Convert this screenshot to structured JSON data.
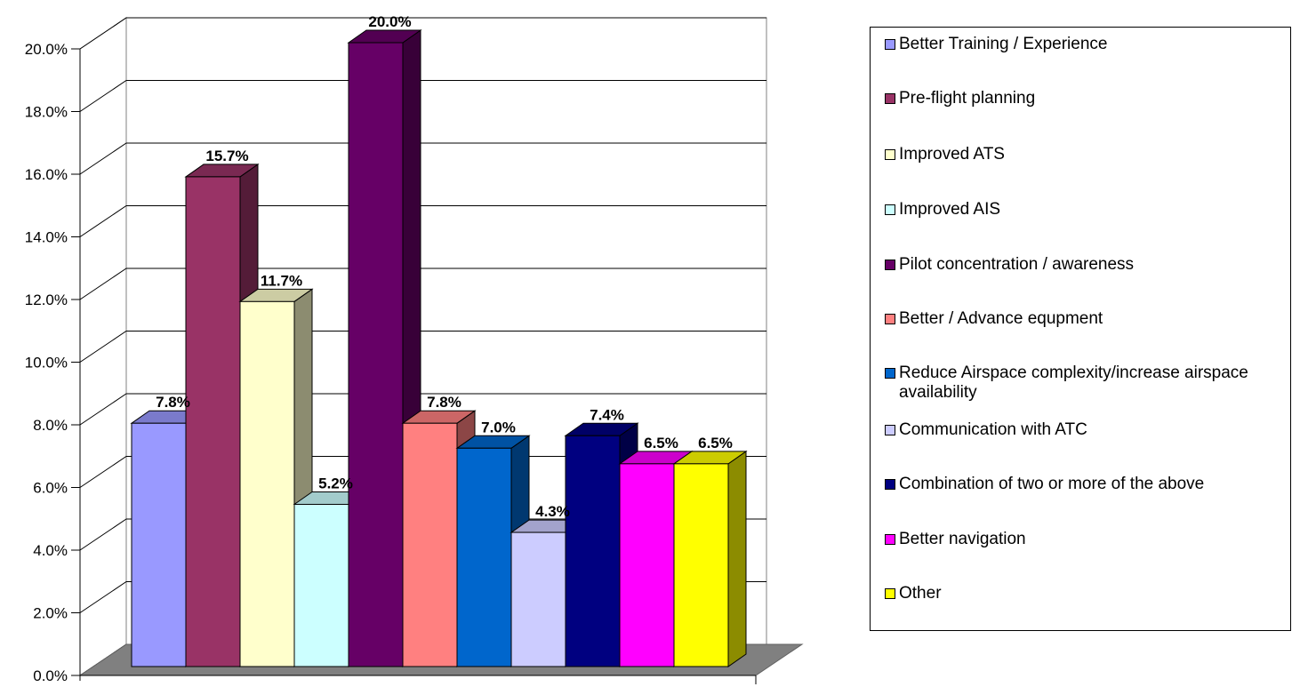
{
  "chart_data": {
    "type": "bar",
    "title": "",
    "xlabel": "",
    "ylabel": "",
    "ylim": [
      0,
      20
    ],
    "y_tick_labels": [
      "0.0%",
      "2.0%",
      "4.0%",
      "6.0%",
      "8.0%",
      "10.0%",
      "12.0%",
      "14.0%",
      "16.0%",
      "18.0%",
      "20.0%"
    ],
    "grid": true,
    "three_d": true,
    "legend_position": "right",
    "categories": [
      "Better Training / Experience",
      "Pre-flight planning",
      "Improved ATS",
      "Improved AIS",
      "Pilot concentration / awareness",
      "Better / Advance equpment",
      "Reduce Airspace complexity/increase airspace availability",
      "Communication with ATC",
      "Combination of two or more of the above",
      "Better navigation",
      "Other"
    ],
    "values": [
      7.8,
      15.7,
      11.7,
      5.2,
      20.0,
      7.8,
      7.0,
      4.3,
      7.4,
      6.5,
      6.5
    ],
    "data_labels": [
      "7.8%",
      "15.7%",
      "11.7%",
      "5.2%",
      "20.0%",
      "7.8%",
      "7.0%",
      "4.3%",
      "7.4%",
      "6.5%",
      "6.5%"
    ],
    "colors": [
      "#9999ff",
      "#993366",
      "#ffffcc",
      "#ccffff",
      "#660066",
      "#ff8080",
      "#0066cc",
      "#ccccff",
      "#000080",
      "#ff00ff",
      "#ffff00"
    ]
  }
}
